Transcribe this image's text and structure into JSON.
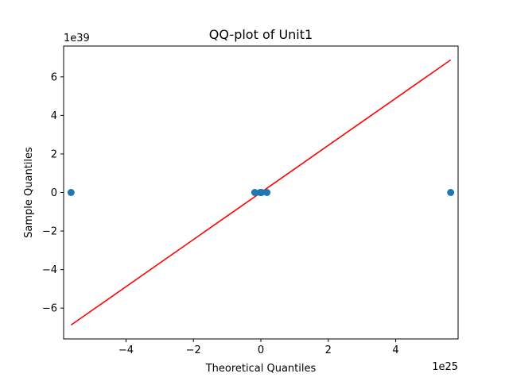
{
  "chart_data": {
    "type": "scatter",
    "title": "QQ-plot of Unit1",
    "xlabel": "Theoretical Quantiles",
    "ylabel": "Sample Quantiles",
    "x_offset_label": "1e25",
    "y_offset_label": "1e39",
    "x_scale_exponent": 25,
    "y_scale_exponent": 39,
    "xlim": [
      -5.85,
      5.85
    ],
    "ylim": [
      -7.6,
      7.6
    ],
    "x_ticks": [
      -4,
      -2,
      0,
      2,
      4
    ],
    "y_ticks": [
      -6,
      -4,
      -2,
      0,
      2,
      4,
      6
    ],
    "grid": false,
    "legend": "none",
    "points": {
      "x": [
        -5.63,
        -0.18,
        -0.02,
        0.0,
        0.02,
        0.18,
        5.63
      ],
      "y": [
        0.0,
        0.0,
        0.0,
        0.0,
        0.0,
        0.0,
        0.0
      ],
      "color": "#1f77b4"
    },
    "reference_line": {
      "x": [
        -5.63,
        5.63
      ],
      "y": [
        -6.88,
        6.88
      ],
      "color": "#ff0000"
    }
  }
}
